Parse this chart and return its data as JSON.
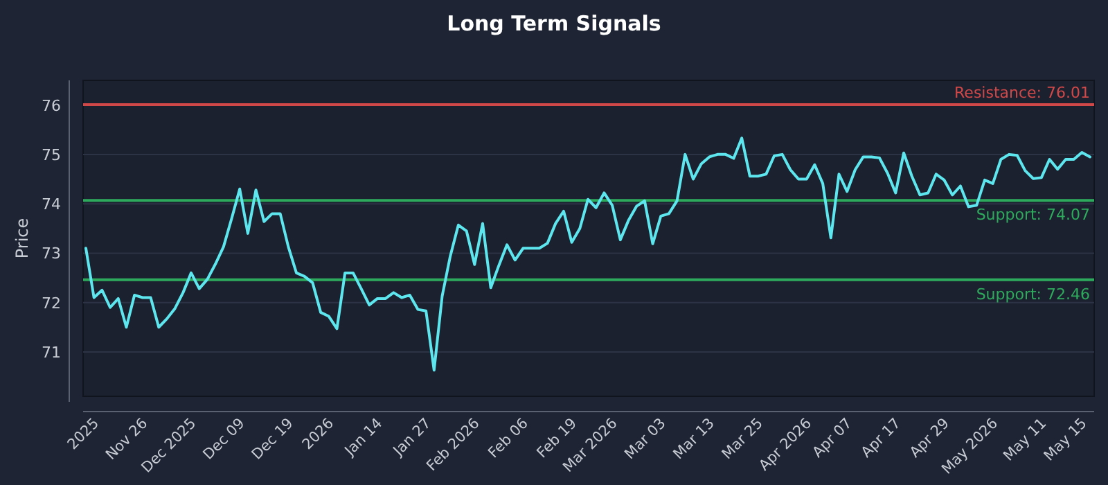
{
  "chart_data": {
    "type": "line",
    "title": "Long Term Signals",
    "ylabel": "Price",
    "categories": [
      null,
      "2025",
      null,
      null,
      null,
      null,
      null,
      "Nov 26",
      null,
      null,
      null,
      null,
      null,
      "Dec 2025",
      null,
      null,
      null,
      null,
      null,
      "Dec 09",
      null,
      null,
      null,
      null,
      null,
      "Dec 19",
      null,
      null,
      null,
      null,
      "2026",
      null,
      null,
      null,
      null,
      null,
      "Jan 14",
      null,
      null,
      null,
      null,
      null,
      "Jan 27",
      null,
      null,
      null,
      null,
      null,
      "Feb 2026",
      null,
      null,
      null,
      null,
      null,
      "Feb 06",
      null,
      null,
      null,
      null,
      null,
      "Feb 19",
      null,
      null,
      null,
      null,
      "Mar 2026",
      null,
      null,
      null,
      null,
      null,
      "Mar 03",
      null,
      null,
      null,
      null,
      null,
      "Mar 13",
      null,
      null,
      null,
      null,
      null,
      "Mar 25",
      null,
      null,
      null,
      null,
      null,
      "Apr 2026",
      null,
      null,
      null,
      null,
      "Apr 07",
      null,
      null,
      null,
      null,
      null,
      "Apr 17",
      null,
      null,
      null,
      null,
      null,
      "Apr 29",
      null,
      null,
      null,
      null,
      null,
      "May 2026",
      null,
      null,
      null,
      null,
      null,
      "May 11",
      null,
      null,
      null,
      null,
      "May 15",
      null
    ],
    "series": [
      {
        "color": "#5ee6ee",
        "values": [
          73.1,
          72.1,
          72.25,
          71.9,
          72.08,
          71.5,
          72.15,
          72.1,
          72.1,
          71.5,
          71.67,
          71.88,
          72.2,
          72.6,
          72.28,
          72.47,
          72.78,
          73.13,
          73.7,
          74.3,
          73.4,
          74.28,
          73.64,
          73.8,
          73.8,
          73.13,
          72.6,
          72.53,
          72.4,
          71.8,
          71.72,
          71.47,
          72.6,
          72.6,
          72.28,
          71.95,
          72.08,
          72.08,
          72.2,
          72.1,
          72.15,
          71.86,
          71.83,
          70.63,
          72.13,
          72.94,
          73.57,
          73.45,
          72.77,
          73.6,
          72.3,
          72.75,
          73.17,
          72.86,
          73.1,
          73.1,
          73.1,
          73.2,
          73.6,
          73.85,
          73.22,
          73.5,
          74.09,
          73.92,
          74.22,
          73.97,
          73.27,
          73.66,
          73.95,
          74.06,
          73.19,
          73.75,
          73.8,
          74.06,
          75.0,
          74.5,
          74.81,
          74.95,
          75.0,
          75.0,
          74.92,
          75.33,
          74.56,
          74.56,
          74.6,
          74.97,
          75.0,
          74.69,
          74.5,
          74.5,
          74.79,
          74.41,
          73.31,
          74.6,
          74.25,
          74.69,
          74.95,
          74.95,
          74.93,
          74.62,
          74.22,
          75.03,
          74.56,
          74.18,
          74.22,
          74.6,
          74.48,
          74.18,
          74.36,
          73.94,
          73.97,
          74.48,
          74.41,
          74.9,
          75.0,
          74.98,
          74.67,
          74.51,
          74.53,
          74.9,
          74.7,
          74.9,
          74.9,
          75.04,
          74.95
        ]
      }
    ],
    "ylim": [
      70.1,
      76.5
    ],
    "yticks": [
      71,
      72,
      73,
      74,
      75,
      76
    ],
    "grid": "y",
    "line_style": "solid",
    "ref_lines": [
      {
        "axis": "y",
        "value": 76.01,
        "label": "Resistance: 76.01",
        "color": "#d04848"
      },
      {
        "axis": "y",
        "value": 74.07,
        "label": "Support: 74.07",
        "color": "#2eaa5c"
      },
      {
        "axis": "y",
        "value": 72.46,
        "label": "Support: 72.46",
        "color": "#2eaa5c"
      }
    ]
  }
}
